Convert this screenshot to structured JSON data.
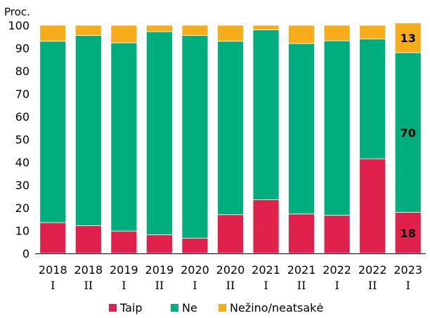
{
  "chart_data": {
    "type": "bar",
    "stacked": true,
    "unit_label": "Proc.",
    "categories": [
      "2018",
      "2018",
      "2019",
      "2019",
      "2020",
      "2020",
      "2021",
      "2021",
      "2022",
      "2022",
      "2023"
    ],
    "subcategories": [
      "I",
      "II",
      "I",
      "II",
      "I",
      "II",
      "I",
      "II",
      "I",
      "II",
      "I"
    ],
    "ylim": [
      0,
      100
    ],
    "yticks": [
      0,
      10,
      20,
      30,
      40,
      50,
      60,
      70,
      80,
      90,
      100
    ],
    "grid": false,
    "legend_position": "bottom",
    "series": [
      {
        "name": "Taip",
        "color": "#e0214b",
        "values": [
          13.5,
          12.2,
          9.8,
          8.2,
          6.7,
          17.0,
          23.5,
          17.3,
          16.7,
          41.5,
          18
        ]
      },
      {
        "name": "Ne",
        "color": "#00ad7c",
        "values": [
          79.5,
          83.3,
          82.5,
          89.0,
          88.8,
          76.0,
          74.5,
          74.7,
          76.5,
          52.5,
          70
        ]
      },
      {
        "name": "Nežino/neatsakė",
        "color": "#f7ad19",
        "values": [
          7.0,
          4.5,
          7.7,
          2.8,
          4.5,
          7.0,
          2.0,
          8.0,
          6.8,
          6.0,
          13
        ]
      }
    ],
    "data_labels": [
      {
        "category_index": 10,
        "series_index": 0,
        "text": "18"
      },
      {
        "category_index": 10,
        "series_index": 1,
        "text": "70"
      },
      {
        "category_index": 10,
        "series_index": 2,
        "text": "13"
      }
    ]
  }
}
